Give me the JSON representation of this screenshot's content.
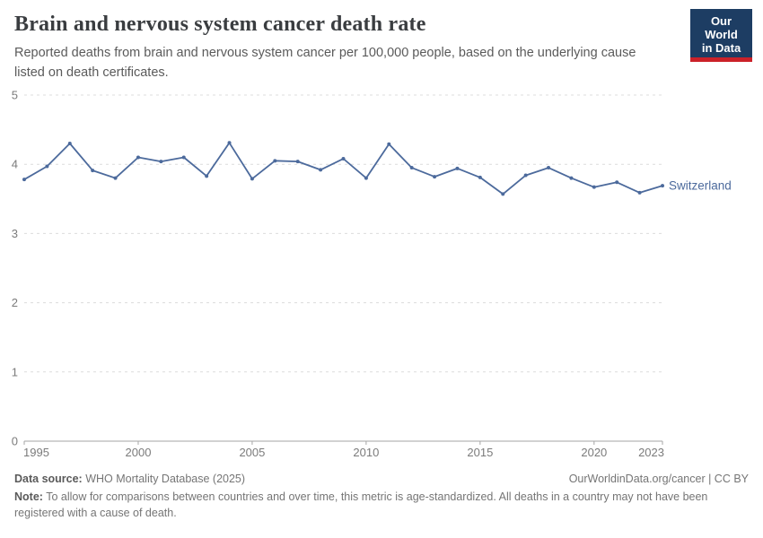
{
  "header": {
    "title": "Brain and nervous system cancer death rate",
    "subtitle": "Reported deaths from brain and nervous system cancer per 100,000 people, based on the underlying cause listed on death certificates.",
    "logo": {
      "line1": "Our World",
      "line2": "in Data",
      "bg_color": "#1d3d63",
      "bar_color": "#cb2129"
    }
  },
  "chart_data": {
    "type": "line",
    "title": "Brain and nervous system cancer death rate",
    "xlabel": "",
    "ylabel": "",
    "x": [
      1995,
      1996,
      1997,
      1998,
      1999,
      2000,
      2001,
      2002,
      2003,
      2004,
      2005,
      2006,
      2007,
      2008,
      2009,
      2010,
      2011,
      2012,
      2013,
      2014,
      2015,
      2016,
      2017,
      2018,
      2019,
      2020,
      2021,
      2022,
      2023
    ],
    "series": [
      {
        "name": "Switzerland",
        "color": "#4C6A9C",
        "values": [
          3.78,
          3.97,
          4.3,
          3.91,
          3.8,
          4.1,
          4.04,
          4.1,
          3.83,
          4.31,
          3.79,
          4.05,
          4.04,
          3.92,
          4.08,
          3.8,
          4.29,
          3.95,
          3.82,
          3.94,
          3.81,
          3.57,
          3.84,
          3.95,
          3.8,
          3.67,
          3.74,
          3.59,
          3.69
        ]
      }
    ],
    "ylim": [
      0,
      5
    ],
    "y_ticks": [
      0,
      1,
      2,
      3,
      4,
      5
    ],
    "x_ticks": [
      1995,
      2000,
      2005,
      2010,
      2015,
      2020,
      2023
    ],
    "grid": "horizontal-dashed",
    "legend": "label-at-line-end"
  },
  "chart_style": {
    "grid_color": "#dcdcdc",
    "axis_color": "#a6a6a6",
    "tick_label_color": "#7b7b7b"
  },
  "footer": {
    "source_label": "Data source:",
    "source_value": " WHO Mortality Database (2025)",
    "link": "OurWorldinData.org/cancer | CC BY",
    "note_label": "Note:",
    "note_value": " To allow for comparisons between countries and over time, this metric is age-standardized. All deaths in a country may not have been registered with a cause of death."
  }
}
